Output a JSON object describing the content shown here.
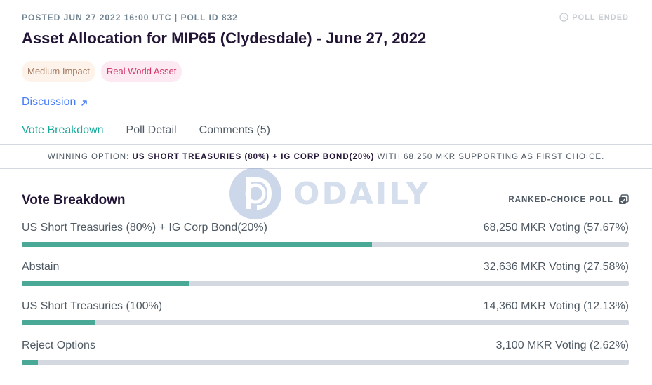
{
  "header": {
    "meta": "POSTED JUN 27 2022 16:00 UTC | POLL ID 832",
    "status": "POLL ENDED",
    "title": "Asset Allocation for MIP65 (Clydesdale) - June 27, 2022",
    "tags": [
      {
        "label": "Medium Impact"
      },
      {
        "label": "Real World Asset"
      }
    ],
    "discussion_label": "Discussion",
    "discussion_icon": "arrow-up-right-icon",
    "status_icon": "clock-icon"
  },
  "tabs": [
    {
      "label": "Vote Breakdown",
      "active": true
    },
    {
      "label": "Poll Detail",
      "active": false
    },
    {
      "label": "Comments (5)",
      "active": false
    }
  ],
  "winner": {
    "prefix": "WINNING OPTION:",
    "option": "US SHORT TREASURIES (80%) + IG CORP BOND(20%)",
    "suffix": "WITH 68,250 MKR SUPPORTING AS FIRST CHOICE."
  },
  "watermark": {
    "text": "ODAILY"
  },
  "breakdown": {
    "title": "Vote Breakdown",
    "poll_type": "RANKED-CHOICE POLL",
    "poll_type_icon": "copy-icon",
    "options": [
      {
        "label": "US Short Treasuries (80%) + IG Corp Bond(20%)",
        "votes": "68,250 MKR Voting (57.67%)",
        "fill": 0.5767
      },
      {
        "label": "Abstain",
        "votes": "32,636 MKR Voting (27.58%)",
        "fill": 0.2758
      },
      {
        "label": "US Short Treasuries (100%)",
        "votes": "14,360 MKR Voting (12.13%)",
        "fill": 0.1213
      },
      {
        "label": "Reject Options",
        "votes": "3,100 MKR Voting (2.62%)",
        "fill": 0.0262
      }
    ]
  },
  "colors": {
    "accent": "#1aab9b",
    "bar_fill": "#49a896",
    "bar_track": "#d4d9e1",
    "link": "#447afb"
  }
}
